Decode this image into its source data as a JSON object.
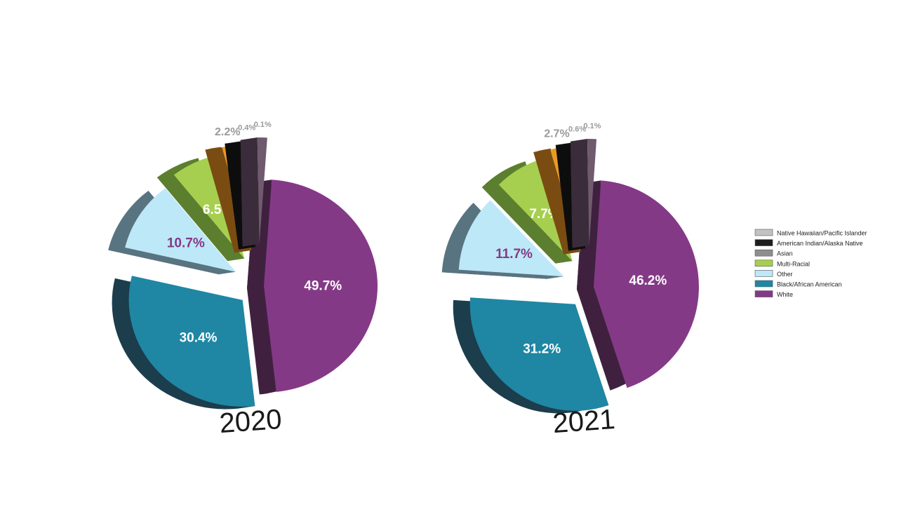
{
  "chart_data": [
    {
      "type": "pie",
      "title": "2020",
      "slices": [
        {
          "label": "White",
          "value": 49.7,
          "display": "49.7%"
        },
        {
          "label": "Black/African American",
          "value": 30.4,
          "display": "30.4%"
        },
        {
          "label": "Other",
          "value": 10.7,
          "display": "10.7%"
        },
        {
          "label": "Multi-Racial",
          "value": 6.5,
          "display": "6.5%"
        },
        {
          "label": "Asian",
          "value": 2.2,
          "display": "2.2%"
        },
        {
          "label": "American Indian/Alaska Native",
          "value": 0.4,
          "display": "0.4%"
        },
        {
          "label": "Native Hawaiian/Pacific Islander",
          "value": 0.1,
          "display": "0.1%"
        }
      ]
    },
    {
      "type": "pie",
      "title": "2021",
      "slices": [
        {
          "label": "White",
          "value": 46.2,
          "display": "46.2%"
        },
        {
          "label": "Black/African American",
          "value": 31.2,
          "display": "31.2%"
        },
        {
          "label": "Other",
          "value": 11.7,
          "display": "11.7%"
        },
        {
          "label": "Multi-Racial",
          "value": 7.7,
          "display": "7.7%"
        },
        {
          "label": "Asian",
          "value": 2.7,
          "display": "2.7%"
        },
        {
          "label": "American Indian/Alaska Native",
          "value": 0.6,
          "display": "0.6%"
        },
        {
          "label": "Native Hawaiian/Pacific Islander",
          "value": 0.1,
          "display": "0.1%"
        }
      ]
    }
  ],
  "legend": {
    "placement": "right",
    "items": [
      {
        "label": "Native Hawaiian/Pacific Islander",
        "color": "#c2c2c2"
      },
      {
        "label": "American Indian/Alaska Native",
        "color": "#1e1e1e"
      },
      {
        "label": "Asian",
        "color": "#8e8e8e"
      },
      {
        "label": "Multi-Racial",
        "color": "#a6cf4f"
      },
      {
        "label": "Other",
        "color": "#bde8f7"
      },
      {
        "label": "Black/African American",
        "color": "#1f87a3"
      },
      {
        "label": "White",
        "color": "#843987"
      }
    ]
  },
  "colors": {
    "White": {
      "top": "#843987",
      "side": "#3f213f",
      "label": "#ffffff"
    },
    "Black/African American": {
      "top": "#1f87a3",
      "side": "#1c3d4c",
      "label": "#ffffff"
    },
    "Other": {
      "top": "#bde8f7",
      "side": "#587480",
      "label": "#843987"
    },
    "Multi-Racial": {
      "top": "#a6cf4f",
      "side": "#5b7f2f",
      "label": "#ffffff"
    },
    "Asian": {
      "top": "#ea9a22",
      "side": "#7a4c12",
      "label": "#9a9a9a"
    },
    "American Indian/Alaska Native": {
      "top": "#262626",
      "side": "#0d0d0d",
      "label": "#9a9a9a"
    },
    "Native Hawaiian/Pacific Islander": {
      "top": "#6f5a6e",
      "side": "#3a2c3a",
      "label": "#9a9a9a"
    }
  }
}
